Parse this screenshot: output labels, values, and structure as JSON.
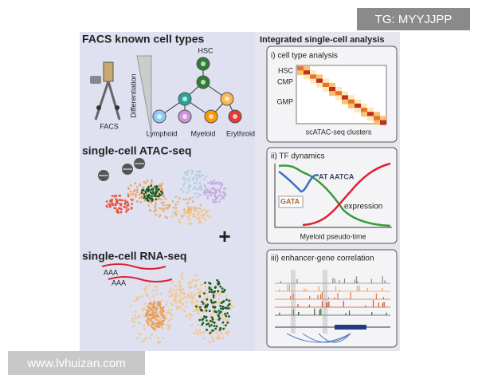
{
  "watermark": "TG: MYYJJPP",
  "footer": "www.lvhuizan.com",
  "left": {
    "facs": {
      "title": "FACS known cell types",
      "hsc": "HSC",
      "axis": "Differentiation",
      "sorter": "FACS",
      "lineages": [
        "Lymphoid",
        "Myeloid",
        "Erythroid"
      ]
    },
    "atac": {
      "title": "single-cell ATAC-seq"
    },
    "plus": "+",
    "rna": {
      "title": "single-cell RNA-seq",
      "tags": [
        "AAA",
        "AAA"
      ]
    }
  },
  "right": {
    "title": "Integrated single-cell analysis",
    "panels": [
      {
        "title": "i) cell type analysis",
        "rows": [
          "HSC",
          "CMP",
          "GMP"
        ],
        "xlabel": "scATAC-seq clusters"
      },
      {
        "title": "ii) TF dynamics",
        "motifs": [
          "AT AATCA",
          "GATA"
        ],
        "label": "expression",
        "xlabel": "Myeloid pseudo-time"
      },
      {
        "title": "iii) enhancer-gene correlation"
      }
    ]
  }
}
